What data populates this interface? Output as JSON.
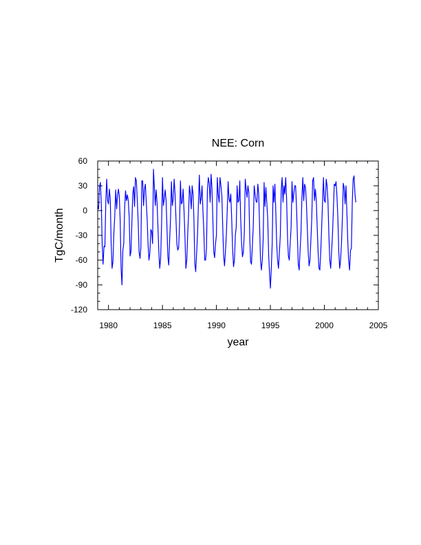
{
  "chart_data": {
    "type": "line",
    "title": "NEE: Corn",
    "xlabel": "year",
    "ylabel": "TgC/month",
    "xlim": [
      1979.0,
      2005.0
    ],
    "ylim": [
      -120,
      60
    ],
    "xticks": [
      1980,
      1985,
      1990,
      1995,
      2000,
      2005
    ],
    "yticks": [
      -120,
      -90,
      -60,
      -30,
      0,
      30,
      60
    ],
    "line_color": "#0000ff",
    "grid": false,
    "legend": "none",
    "series": [
      {
        "start_year": 1979,
        "monthly_values": [
          [
            6,
            2,
            29,
            34,
            10,
            -40,
            -65,
            -43,
            -44,
            11,
            38,
            12
          ],
          [
            8,
            26,
            14,
            -40,
            -70,
            -62,
            -28,
            -7,
            25,
            2,
            18,
            26
          ],
          [
            18,
            -12,
            -70,
            -90,
            -48,
            -40,
            4,
            24,
            12,
            19,
            12,
            -8
          ],
          [
            -55,
            -50,
            -15,
            20,
            29,
            5,
            40,
            36,
            14,
            -12,
            -50,
            -58
          ],
          [
            -45,
            36,
            36,
            6,
            26,
            32,
            10,
            -10,
            -40,
            -60,
            -52,
            -23
          ],
          [
            -25,
            -40,
            50,
            28,
            6,
            25,
            10,
            -20,
            -50,
            -70,
            -58,
            -20
          ],
          [
            40,
            6,
            14,
            25,
            13,
            -20,
            -56,
            -66,
            -36,
            -10,
            35,
            6
          ],
          [
            14,
            38,
            20,
            -10,
            -40,
            -48,
            -45,
            -18,
            36,
            8,
            10,
            26
          ],
          [
            0,
            -30,
            -70,
            -60,
            -30,
            -5,
            30,
            20,
            2,
            30,
            20,
            -10
          ],
          [
            -64,
            -74,
            -52,
            -28,
            10,
            43,
            8,
            15,
            30,
            0,
            -25,
            -60
          ],
          [
            -60,
            -46,
            25,
            40,
            33,
            10,
            44,
            28,
            -10,
            -50,
            -57,
            -40
          ],
          [
            -30,
            40,
            20,
            10,
            40,
            30,
            18,
            -20,
            -55,
            -67,
            -50,
            -30
          ],
          [
            0,
            35,
            14,
            10,
            20,
            -10,
            -48,
            -68,
            -60,
            -30,
            -20,
            30
          ],
          [
            10,
            12,
            36,
            -10,
            -40,
            -56,
            -50,
            -26,
            38,
            26,
            16,
            30
          ],
          [
            22,
            -30,
            -62,
            -65,
            -42,
            -18,
            30,
            20,
            11,
            10,
            32,
            20
          ],
          [
            -20,
            -60,
            -72,
            -60,
            -34,
            34,
            5,
            28,
            10,
            -10,
            -53,
            -76
          ],
          [
            -94,
            -70,
            -40,
            30,
            10,
            32,
            0,
            -40,
            -60,
            -70,
            -50,
            -30
          ],
          [
            25,
            40,
            10,
            30,
            20,
            40,
            15,
            -30,
            -55,
            -60,
            -40,
            -20
          ],
          [
            35,
            10,
            20,
            30,
            30,
            5,
            -30,
            -65,
            -72,
            -48,
            -28,
            14
          ],
          [
            40,
            12,
            32,
            28,
            10,
            -20,
            -50,
            -67,
            -60,
            -36,
            -10,
            36
          ],
          [
            40,
            12,
            26,
            12,
            -20,
            -50,
            -70,
            -72,
            -50,
            -20,
            10,
            40
          ],
          [
            12,
            10,
            38,
            30,
            10,
            -30,
            -60,
            -70,
            -50,
            -30,
            0,
            32
          ],
          [
            30,
            35,
            18,
            -10,
            -50,
            -70,
            -60,
            -40,
            -10,
            33,
            28,
            8
          ],
          [
            30,
            0,
            -36,
            -60,
            -72,
            -48,
            -46,
            10,
            38,
            42,
            20,
            10
          ]
        ]
      }
    ]
  }
}
